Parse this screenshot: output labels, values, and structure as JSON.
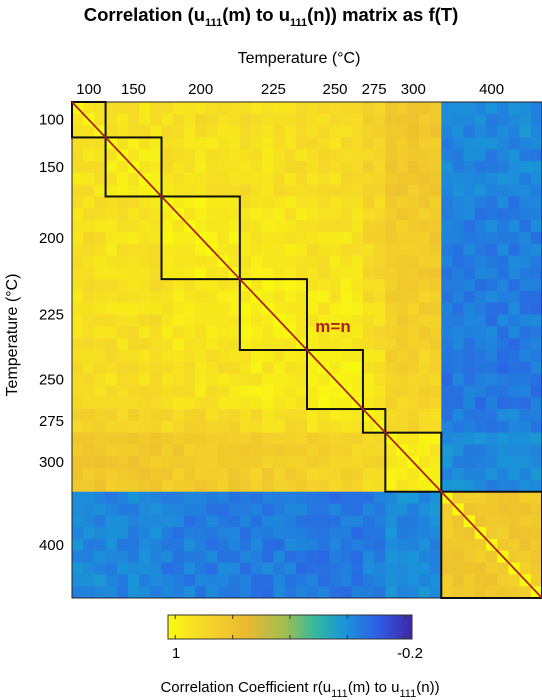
{
  "chart_data": {
    "type": "heatmap",
    "title_parts": {
      "p1": "Correlation (u",
      "s1": "111",
      "p2": "(m) to u",
      "s2": "111",
      "p3": "(n))  matrix as f(T)"
    },
    "xlabel": "Temperature (°C)",
    "ylabel": "Temperature (°C)",
    "x_tick_labels": [
      "100",
      "150",
      "200",
      "225",
      "250",
      "275",
      "300",
      "400"
    ],
    "y_tick_labels": [
      "100",
      "150",
      "200",
      "225",
      "250",
      "275",
      "300",
      "400"
    ],
    "temperature_blocks": [
      {
        "T": "100",
        "n": 3
      },
      {
        "T": "150",
        "n": 5
      },
      {
        "T": "200",
        "n": 7
      },
      {
        "T": "225",
        "n": 6
      },
      {
        "T": "250",
        "n": 5
      },
      {
        "T": "275",
        "n": 2
      },
      {
        "T": "300",
        "n": 5
      },
      {
        "T": "400",
        "n": 9
      }
    ],
    "correlation_by_block_pair": [
      [
        0.92,
        0.88,
        0.86,
        0.86,
        0.84,
        0.78,
        0.7,
        0.1
      ],
      [
        0.88,
        0.92,
        0.88,
        0.87,
        0.86,
        0.8,
        0.72,
        0.08
      ],
      [
        0.86,
        0.88,
        0.93,
        0.9,
        0.88,
        0.82,
        0.74,
        0.06
      ],
      [
        0.86,
        0.87,
        0.9,
        0.93,
        0.91,
        0.85,
        0.76,
        0.05
      ],
      [
        0.84,
        0.86,
        0.88,
        0.91,
        0.94,
        0.88,
        0.79,
        0.04
      ],
      [
        0.78,
        0.8,
        0.82,
        0.85,
        0.88,
        0.95,
        0.82,
        0.06
      ],
      [
        0.7,
        0.72,
        0.74,
        0.76,
        0.79,
        0.82,
        0.92,
        0.1
      ],
      [
        0.1,
        0.08,
        0.06,
        0.05,
        0.04,
        0.06,
        0.1,
        0.72
      ]
    ],
    "diagonal_label": "m=n",
    "colorbar": {
      "colormap": "parula-reversed",
      "max": 1,
      "min": -0.2,
      "max_label": "1",
      "min_label": "-0.2",
      "label_parts": {
        "p1": "Correlation Coefficient r(u",
        "s1": "111",
        "p2": "(m) to u",
        "s2": "111",
        "p3": "(n))"
      }
    },
    "colors": {
      "diagonal": "#b0201e",
      "block_outline": "#111111"
    }
  }
}
